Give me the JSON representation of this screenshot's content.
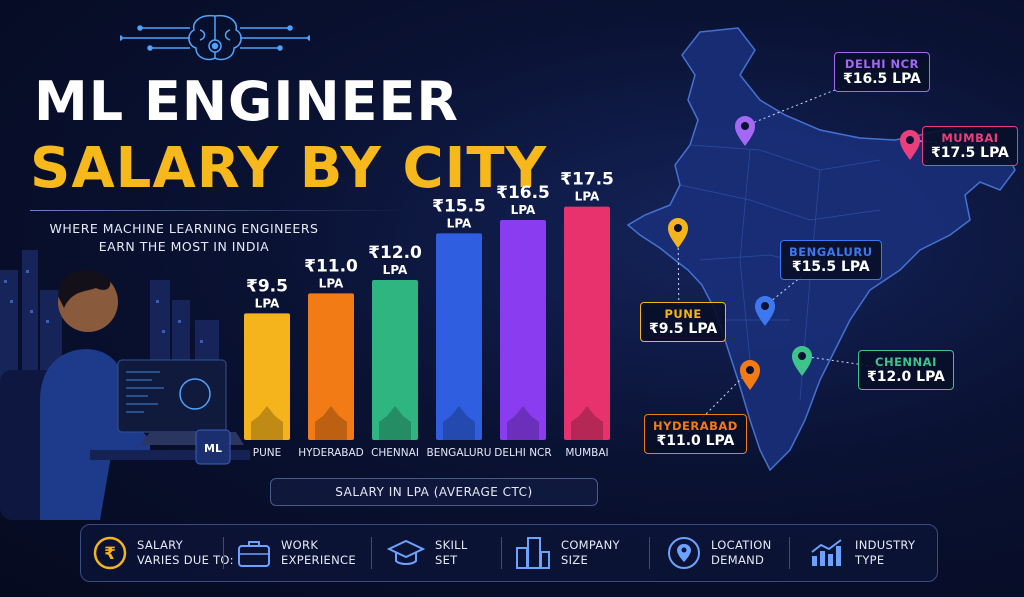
{
  "header": {
    "title_line1": "ML ENGINEER",
    "title_line2": "SALARY BY CITY",
    "subtitle_line1": "WHERE MACHINE LEARNING ENGINEERS",
    "subtitle_line2": "EARN THE MOST IN INDIA"
  },
  "illustration": {
    "mug_label": "ML"
  },
  "chart_data": {
    "type": "bar",
    "title": "SALARY BY CITY",
    "xlabel": "SALARY IN LPA (AVERAGE CTC)",
    "categories": [
      "PUNE",
      "HYDERABAD",
      "CHENNAI",
      "BENGALURU",
      "DELHI NCR",
      "MUMBAI"
    ],
    "values": [
      9.5,
      11.0,
      12.0,
      15.5,
      16.5,
      17.5
    ],
    "value_labels": [
      "₹9.5",
      "₹11.0",
      "₹12.0",
      "₹15.5",
      "₹16.5",
      "₹17.5"
    ],
    "unit": "LPA",
    "colors": [
      "#f5b31c",
      "#f27b16",
      "#2fb57f",
      "#2f5fe0",
      "#8a3df0",
      "#e8326e"
    ],
    "ylim": [
      0,
      18
    ]
  },
  "map": {
    "callouts": [
      {
        "city": "DELHI NCR",
        "value": "₹16.5 LPA",
        "color": "#a468f5"
      },
      {
        "city": "MUMBAI",
        "value": "₹17.5 LPA",
        "color": "#ea3f7c"
      },
      {
        "city": "BENGALURU",
        "value": "₹15.5 LPA",
        "color": "#3d78f0"
      },
      {
        "city": "PUNE",
        "value": "₹9.5 LPA",
        "color": "#f5b31c"
      },
      {
        "city": "CHENNAI",
        "value": "₹12.0 LPA",
        "color": "#3ec48a"
      },
      {
        "city": "HYDERABAD",
        "value": "₹11.0 LPA",
        "color": "#f27b16"
      }
    ]
  },
  "footer": {
    "intro": {
      "line1": "SALARY",
      "line2": "VARIES DUE TO:",
      "icon": "rupee-icon"
    },
    "factors": [
      {
        "line1": "WORK",
        "line2": "EXPERIENCE",
        "icon": "briefcase-icon"
      },
      {
        "line1": "SKILL",
        "line2": "SET",
        "icon": "graduation-cap-icon"
      },
      {
        "line1": "COMPANY",
        "line2": "SIZE",
        "icon": "buildings-icon"
      },
      {
        "line1": "LOCATION",
        "line2": "DEMAND",
        "icon": "location-pin-icon"
      },
      {
        "line1": "INDUSTRY",
        "line2": "TYPE",
        "icon": "growth-chart-icon"
      }
    ]
  }
}
